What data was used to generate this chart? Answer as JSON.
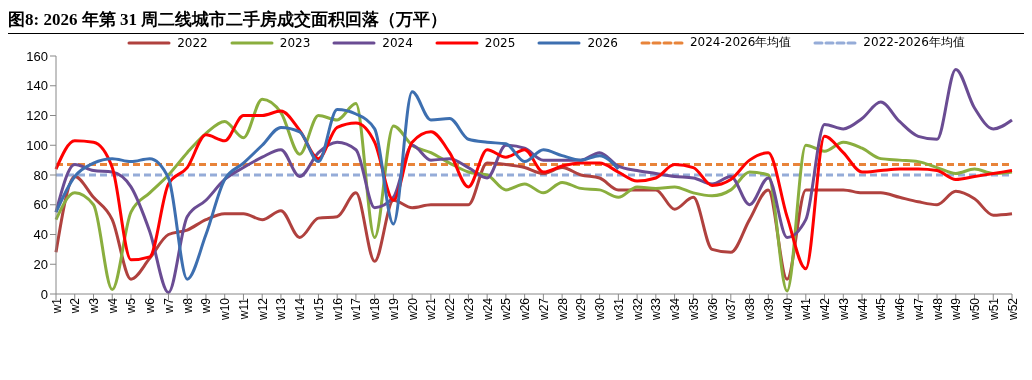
{
  "chart_data": {
    "type": "line",
    "title": "图8:  2026 年第 31 周二线城市二手房成交面积回落（万平）",
    "categories": [
      "w1",
      "w2",
      "w3",
      "w4",
      "w5",
      "w6",
      "w7",
      "w8",
      "w9",
      "w10",
      "w11",
      "w12",
      "w13",
      "w14",
      "w15",
      "w16",
      "w17",
      "w18",
      "w19",
      "w20",
      "w21",
      "w22",
      "w23",
      "w24",
      "w25",
      "w26",
      "w27",
      "w28",
      "w29",
      "w30",
      "w31",
      "w32",
      "w33",
      "w34",
      "w35",
      "w36",
      "w37",
      "w38",
      "w39",
      "w40",
      "w41",
      "w42",
      "w43",
      "w44",
      "w45",
      "w46",
      "w47",
      "w48",
      "w49",
      "w50",
      "w51",
      "w52"
    ],
    "series": [
      {
        "name": "2022",
        "color": "#b0413e",
        "values": [
          28,
          79,
          65,
          50,
          10,
          24,
          40,
          43,
          50,
          54,
          54,
          50,
          56,
          38,
          51,
          52,
          68,
          22,
          63,
          58,
          60,
          60,
          60,
          88,
          87,
          85,
          81,
          85,
          80,
          78,
          70,
          70,
          70,
          57,
          65,
          30,
          28,
          50,
          70,
          10,
          70,
          70,
          70,
          68,
          68,
          65,
          62,
          60,
          69,
          64,
          53,
          54
        ]
      },
      {
        "name": "2023",
        "color": "#8aae3e",
        "values": [
          50,
          68,
          60,
          3,
          55,
          68,
          80,
          95,
          108,
          116,
          105,
          131,
          122,
          94,
          120,
          117,
          128,
          38,
          113,
          100,
          95,
          88,
          82,
          80,
          70,
          74,
          68,
          75,
          71,
          70,
          65,
          72,
          71,
          72,
          68,
          66,
          70,
          82,
          80,
          2,
          100,
          96,
          102,
          98,
          91,
          90,
          89,
          85,
          81,
          84,
          81,
          82
        ]
      },
      {
        "name": "2024",
        "color": "#6a4c93",
        "values": [
          55,
          87,
          83,
          82,
          72,
          42,
          1,
          52,
          63,
          77,
          85,
          92,
          97,
          79,
          95,
          102,
          97,
          58,
          65,
          100,
          90,
          91,
          85,
          78,
          100,
          98,
          90,
          90,
          90,
          95,
          86,
          83,
          81,
          79,
          78,
          74,
          79,
          60,
          78,
          38,
          50,
          114,
          111,
          118,
          129,
          116,
          106,
          104,
          151,
          125,
          111,
          117
        ]
      },
      {
        "name": "2025",
        "color": "#ff0000",
        "values": [
          84,
          103,
          102,
          85,
          23,
          25,
          74,
          85,
          107,
          103,
          120,
          120,
          123,
          110,
          91,
          112,
          115,
          102,
          63,
          102,
          109,
          95,
          72,
          97,
          92,
          97,
          82,
          86,
          88,
          88,
          82,
          76,
          78,
          87,
          85,
          73,
          77,
          90,
          95,
          52,
          17,
          106,
          95,
          82,
          83,
          84,
          84,
          83,
          77,
          79,
          81,
          83
        ]
      },
      {
        "name": "2026",
        "color": "#3d6fb0",
        "values": [
          55,
          79,
          88,
          91,
          89,
          91,
          78,
          10,
          40,
          77,
          88,
          100,
          112,
          109,
          89,
          124,
          121,
          111,
          47,
          136,
          117,
          118,
          104,
          102,
          101,
          89,
          97,
          93,
          90,
          93,
          84,
          null,
          null,
          null,
          null,
          null,
          null,
          null,
          null,
          null,
          null,
          null,
          null,
          null,
          null,
          null,
          null,
          null,
          null,
          null,
          null,
          null
        ]
      }
    ],
    "ref_lines": [
      {
        "axis": "y",
        "value": 87,
        "label": "2024-2026年均值",
        "color": "#e8843a",
        "line_style": "dashed"
      },
      {
        "axis": "y",
        "value": 80,
        "label": "2022-2026年均值",
        "color": "#95acd8",
        "line_style": "dashed"
      }
    ],
    "ylim": [
      0,
      160
    ],
    "yticks": [
      0,
      20,
      40,
      60,
      80,
      100,
      120,
      140,
      160
    ],
    "legend": "top"
  }
}
